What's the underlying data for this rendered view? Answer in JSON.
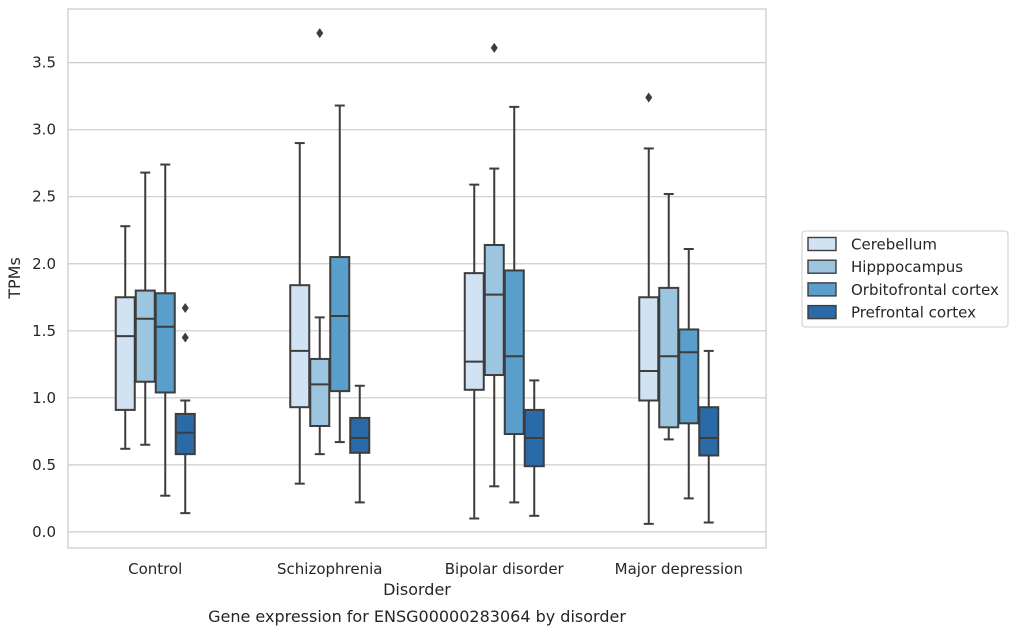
{
  "chart_data": {
    "type": "boxplot",
    "title": "",
    "caption": "Gene expression for ENSG00000283064 by disorder",
    "xlabel": "Disorder",
    "ylabel": "TPMs",
    "ylim": [
      -0.12,
      3.9
    ],
    "yticks": [
      0.0,
      0.5,
      1.0,
      1.5,
      2.0,
      2.5,
      3.0,
      3.5
    ],
    "ytick_labels": [
      "0.0",
      "0.5",
      "1.0",
      "1.5",
      "2.0",
      "2.5",
      "3.0",
      "3.5"
    ],
    "grid": "horizontal",
    "legend_position": "right",
    "categories": [
      "Control",
      "Schizophrenia",
      "Bipolar disorder",
      "Major depression"
    ],
    "series": [
      {
        "name": "Cerebellum",
        "color": "#d1e2f2",
        "boxes": [
          {
            "whisker_low": 0.62,
            "q1": 0.91,
            "median": 1.46,
            "q3": 1.75,
            "whisker_high": 2.28,
            "outliers": []
          },
          {
            "whisker_low": 0.36,
            "q1": 0.93,
            "median": 1.35,
            "q3": 1.84,
            "whisker_high": 2.9,
            "outliers": []
          },
          {
            "whisker_low": 0.1,
            "q1": 1.06,
            "median": 1.27,
            "q3": 1.93,
            "whisker_high": 2.59,
            "outliers": []
          },
          {
            "whisker_low": 0.06,
            "q1": 0.98,
            "median": 1.2,
            "q3": 1.75,
            "whisker_high": 2.86,
            "outliers": [
              3.24
            ]
          }
        ]
      },
      {
        "name": "Hipppocampus",
        "color": "#9cc5df",
        "boxes": [
          {
            "whisker_low": 0.65,
            "q1": 1.12,
            "median": 1.59,
            "q3": 1.8,
            "whisker_high": 2.68,
            "outliers": []
          },
          {
            "whisker_low": 0.58,
            "q1": 0.79,
            "median": 1.1,
            "q3": 1.29,
            "whisker_high": 1.6,
            "outliers": [
              3.72
            ]
          },
          {
            "whisker_low": 0.34,
            "q1": 1.17,
            "median": 1.77,
            "q3": 2.14,
            "whisker_high": 2.71,
            "outliers": [
              3.61
            ]
          },
          {
            "whisker_low": 0.69,
            "q1": 0.78,
            "median": 1.31,
            "q3": 1.82,
            "whisker_high": 2.52,
            "outliers": []
          }
        ]
      },
      {
        "name": "Orbitofrontal cortex",
        "color": "#5a9ecb",
        "boxes": [
          {
            "whisker_low": 0.27,
            "q1": 1.04,
            "median": 1.53,
            "q3": 1.78,
            "whisker_high": 2.74,
            "outliers": []
          },
          {
            "whisker_low": 0.67,
            "q1": 1.05,
            "median": 1.61,
            "q3": 2.05,
            "whisker_high": 3.18,
            "outliers": []
          },
          {
            "whisker_low": 0.22,
            "q1": 0.73,
            "median": 1.31,
            "q3": 1.95,
            "whisker_high": 3.17,
            "outliers": []
          },
          {
            "whisker_low": 0.25,
            "q1": 0.81,
            "median": 1.34,
            "q3": 1.51,
            "whisker_high": 2.11,
            "outliers": []
          }
        ]
      },
      {
        "name": "Prefrontal cortex",
        "color": "#2a6aa6",
        "boxes": [
          {
            "whisker_low": 0.14,
            "q1": 0.58,
            "median": 0.74,
            "q3": 0.88,
            "whisker_high": 0.98,
            "outliers": [
              1.67,
              1.45
            ]
          },
          {
            "whisker_low": 0.22,
            "q1": 0.59,
            "median": 0.7,
            "q3": 0.85,
            "whisker_high": 1.09,
            "outliers": []
          },
          {
            "whisker_low": 0.12,
            "q1": 0.49,
            "median": 0.7,
            "q3": 0.91,
            "whisker_high": 1.13,
            "outliers": []
          },
          {
            "whisker_low": 0.07,
            "q1": 0.57,
            "median": 0.7,
            "q3": 0.93,
            "whisker_high": 1.35,
            "outliers": []
          }
        ]
      }
    ]
  }
}
